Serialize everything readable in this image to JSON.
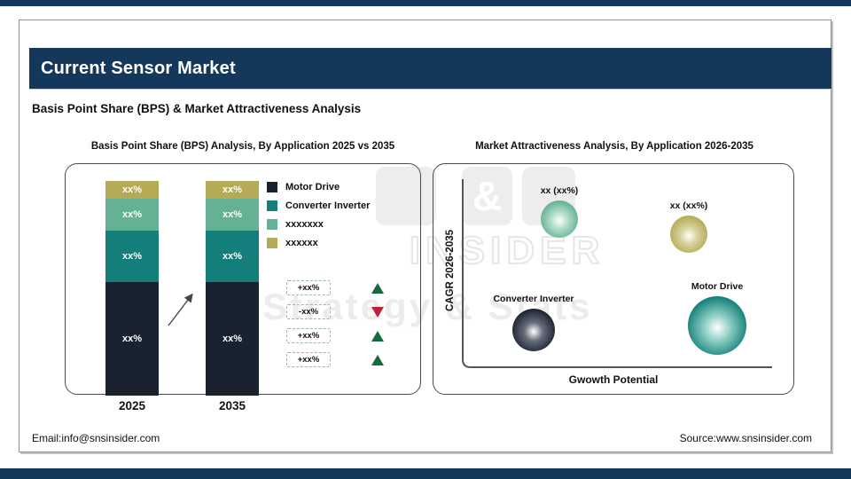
{
  "page": {
    "title": "Current Sensor Market",
    "subtitle": "Basis Point Share (BPS) & Market Attractiveness Analysis",
    "footer_left": "Email:info@snsinsider.com",
    "footer_right": "Source:www.snsinsider.com"
  },
  "watermark": {
    "ampersand": "&",
    "line1": "INSIDER",
    "line2": "Strategy & Stats"
  },
  "colors": {
    "brand_navy": "#14385b",
    "positive_green": "#176a3e",
    "negative_red": "#c41d36",
    "axis_gray": "#555555",
    "panel_border": "#4a4a4a"
  },
  "chart_data": [
    {
      "type": "bar",
      "subtype": "stacked",
      "title": "Basis Point Share (BPS) Analysis, By Application 2025 vs 2035",
      "categories": [
        "2025",
        "2035"
      ],
      "series": [
        {
          "name": "Motor Drive",
          "color": "#19222f",
          "label": "xx%",
          "visual_pct": [
            52.8,
            52.8
          ]
        },
        {
          "name": "Converter Inverter",
          "color": "#147f7a",
          "label": "xx%",
          "visual_pct": [
            24.2,
            24.2
          ]
        },
        {
          "name": "xxxxxxx",
          "color": "#64b193",
          "label": "xx%",
          "visual_pct": [
            14.6,
            14.6
          ]
        },
        {
          "name": "xxxxxx",
          "color": "#b5ab57",
          "label": "xx%",
          "visual_pct": [
            8.4,
            8.4
          ]
        }
      ],
      "changes": [
        {
          "value": "+xx%",
          "direction": "up"
        },
        {
          "value": "-xx%",
          "direction": "down"
        },
        {
          "value": "+xx%",
          "direction": "up"
        },
        {
          "value": "+xx%",
          "direction": "up"
        }
      ],
      "legend_position": "top-right",
      "grid": false
    },
    {
      "type": "scatter",
      "subtype": "bubble",
      "title": "Market Attractiveness Analysis, By Application 2026-2035",
      "xlabel": "Gwowth Potential",
      "ylabel": "CAGR 2026-2035",
      "bubbles": [
        {
          "label": "xx (xx%)",
          "color": "#64b193",
          "mid": "#b4ddcc",
          "x": 142,
          "y": 62,
          "r": 21
        },
        {
          "label": "xx (xx%)",
          "color": "#b5ab57",
          "mid": "#d9d2a0",
          "x": 288,
          "y": 79,
          "r": 21
        },
        {
          "label": "Converter Inverter",
          "color": "#1b2330",
          "mid": "#666c79",
          "x": 113,
          "y": 187,
          "r": 24
        },
        {
          "label": "Motor Drive",
          "color": "#147f7a",
          "mid": "#8fcfc5",
          "x": 320,
          "y": 182,
          "r": 33
        }
      ],
      "grid": false
    }
  ]
}
